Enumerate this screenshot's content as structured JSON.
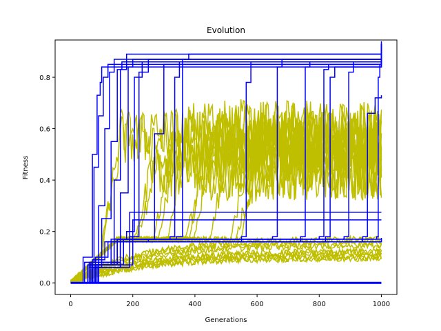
{
  "chart_data": {
    "type": "line",
    "title": "Evolution",
    "xlabel": "Generations",
    "ylabel": "Fitness",
    "xlim": [
      -50,
      1050
    ],
    "ylim": [
      -0.045,
      0.945
    ],
    "xticks": [
      0,
      200,
      400,
      600,
      800,
      1000
    ],
    "yticks": [
      0.0,
      0.2,
      0.4,
      0.6,
      0.8
    ],
    "xtick_labels": [
      "0",
      "200",
      "400",
      "600",
      "800",
      "1000"
    ],
    "ytick_labels": [
      "0.0",
      "0.2",
      "0.4",
      "0.6",
      "0.8"
    ],
    "grid": false,
    "colors": {
      "best": "#0000ff",
      "average": "#bfbf00"
    },
    "best_runs": [
      {
        "x": [
          0,
          40,
          70,
          85,
          95,
          100,
          1000
        ],
        "y": [
          0,
          0.1,
          0.5,
          0.73,
          0.78,
          0.84,
          0.94
        ]
      },
      {
        "x": [
          0,
          45,
          75,
          90,
          105,
          120,
          1000
        ],
        "y": [
          0,
          0.08,
          0.45,
          0.65,
          0.8,
          0.85,
          0.93
        ]
      },
      {
        "x": [
          0,
          55,
          90,
          110,
          125,
          140,
          1000
        ],
        "y": [
          0,
          0.07,
          0.3,
          0.6,
          0.82,
          0.87,
          0.93
        ]
      },
      {
        "x": [
          0,
          60,
          100,
          130,
          150,
          165,
          1000
        ],
        "y": [
          0,
          0.06,
          0.25,
          0.55,
          0.83,
          0.86,
          0.92
        ]
      },
      {
        "x": [
          0,
          70,
          110,
          140,
          160,
          180,
          1000
        ],
        "y": [
          0,
          0.09,
          0.16,
          0.4,
          0.83,
          0.89,
          0.93
        ]
      },
      {
        "x": [
          0,
          80,
          120,
          160,
          185,
          200,
          1000
        ],
        "y": [
          0,
          0.1,
          0.16,
          0.35,
          0.84,
          0.87,
          0.92
        ]
      },
      {
        "x": [
          0,
          60,
          130,
          180,
          205,
          230,
          1000
        ],
        "y": [
          0,
          0.07,
          0.17,
          0.2,
          0.8,
          0.86,
          0.91
        ]
      },
      {
        "x": [
          0,
          90,
          150,
          190,
          220,
          250,
          1000
        ],
        "y": [
          0,
          0.08,
          0.16,
          0.18,
          0.82,
          0.87,
          0.92
        ]
      },
      {
        "x": [
          0,
          80,
          140,
          250,
          270,
          300,
          1000
        ],
        "y": [
          0,
          0.07,
          0.16,
          0.17,
          0.58,
          0.85,
          0.91
        ]
      },
      {
        "x": [
          0,
          70,
          150,
          320,
          335,
          350,
          1000
        ],
        "y": [
          0,
          0.08,
          0.17,
          0.18,
          0.8,
          0.86,
          0.91
        ]
      },
      {
        "x": [
          0,
          90,
          160,
          340,
          360,
          380,
          1000
        ],
        "y": [
          0,
          0.07,
          0.17,
          0.18,
          0.87,
          0.89,
          0.93
        ]
      },
      {
        "x": [
          0,
          60,
          140,
          550,
          565,
          580,
          1000
        ],
        "y": [
          0,
          0.08,
          0.16,
          0.18,
          0.78,
          0.86,
          0.92
        ]
      },
      {
        "x": [
          0,
          70,
          150,
          650,
          665,
          680,
          1000
        ],
        "y": [
          0,
          0.07,
          0.17,
          0.18,
          0.84,
          0.87,
          0.91
        ]
      },
      {
        "x": [
          0,
          80,
          160,
          740,
          755,
          770,
          1000
        ],
        "y": [
          0,
          0.06,
          0.16,
          0.18,
          0.84,
          0.86,
          0.9
        ]
      },
      {
        "x": [
          0,
          75,
          170,
          800,
          815,
          830,
          1000
        ],
        "y": [
          0,
          0.07,
          0.17,
          0.18,
          0.83,
          0.85,
          0.89
        ]
      },
      {
        "x": [
          0,
          65,
          160,
          820,
          835,
          850,
          1000
        ],
        "y": [
          0,
          0.08,
          0.16,
          0.18,
          0.8,
          0.84,
          0.9
        ]
      },
      {
        "x": [
          0,
          85,
          150,
          880,
          895,
          910,
          1000
        ],
        "y": [
          0,
          0.07,
          0.17,
          0.18,
          0.82,
          0.86,
          0.9
        ]
      },
      {
        "x": [
          0,
          75,
          160,
          940,
          955,
          980,
          1000
        ],
        "y": [
          0,
          0.06,
          0.16,
          0.18,
          0.66,
          0.72,
          0.73
        ]
      },
      {
        "x": [
          0,
          70,
          150,
          985,
          990,
          995,
          1000
        ],
        "y": [
          0,
          0.07,
          0.17,
          0.18,
          0.8,
          0.85,
          0.86
        ]
      },
      {
        "x": [
          0,
          80,
          170,
          1000
        ],
        "y": [
          0,
          0.07,
          0.17,
          0.175
        ]
      },
      {
        "x": [
          0,
          90,
          160,
          1000
        ],
        "y": [
          0,
          0.08,
          0.16,
          0.17
        ]
      },
      {
        "x": [
          0,
          60,
          140,
          1000
        ],
        "y": [
          0,
          0.07,
          0.16,
          0.17
        ]
      },
      {
        "x": [
          0,
          70,
          190,
          1000
        ],
        "y": [
          0,
          0.06,
          0.275,
          0.275
        ]
      },
      {
        "x": [
          0,
          80,
          200,
          1000
        ],
        "y": [
          0,
          0.07,
          0.245,
          0.245
        ]
      },
      {
        "x": [
          0,
          1000
        ],
        "y": [
          0,
          0
        ]
      }
    ],
    "average_runs_high": {
      "description_levels": [
        0.45,
        0.5,
        0.55,
        0.6
      ],
      "count": 14
    },
    "average_runs_low": {
      "levels": [
        0.1,
        0.12,
        0.15,
        0.17
      ],
      "count": 10
    }
  }
}
